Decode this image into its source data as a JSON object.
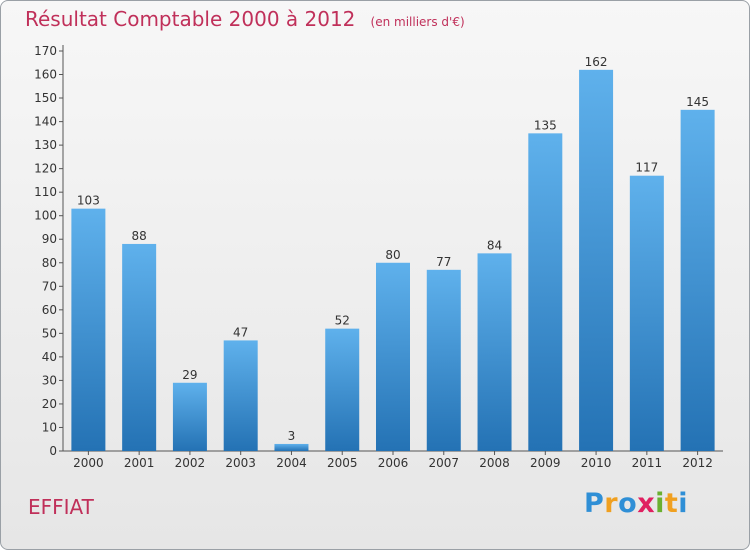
{
  "chart_data": {
    "type": "bar",
    "title": "Résultat Comptable 2000 à 2012",
    "subtitle": "(en milliers d'€)",
    "categories": [
      "2000",
      "2001",
      "2002",
      "2003",
      "2004",
      "2005",
      "2006",
      "2007",
      "2008",
      "2009",
      "2010",
      "2011",
      "2012"
    ],
    "values": [
      103,
      88,
      29,
      47,
      3,
      52,
      80,
      77,
      84,
      135,
      162,
      117,
      145
    ],
    "ylim": [
      0,
      170
    ],
    "yticks": [
      0,
      10,
      20,
      30,
      40,
      50,
      60,
      70,
      80,
      90,
      100,
      110,
      120,
      130,
      140,
      150,
      160,
      170
    ],
    "xlabel": "",
    "ylabel": "",
    "grid": false
  },
  "commune": "EFFIAT",
  "logo": {
    "letters": [
      "P",
      "r",
      "o",
      "x",
      "i",
      "t",
      "i"
    ],
    "colors": [
      "#2f8fd6",
      "#f0a020",
      "#2f8fd6",
      "#e02060",
      "#6ab030",
      "#f0a020",
      "#2f8fd6"
    ]
  },
  "colors": {
    "title": "#c0305a",
    "bar_light": "#5fb1ec",
    "bar_dark": "#2472b4"
  }
}
